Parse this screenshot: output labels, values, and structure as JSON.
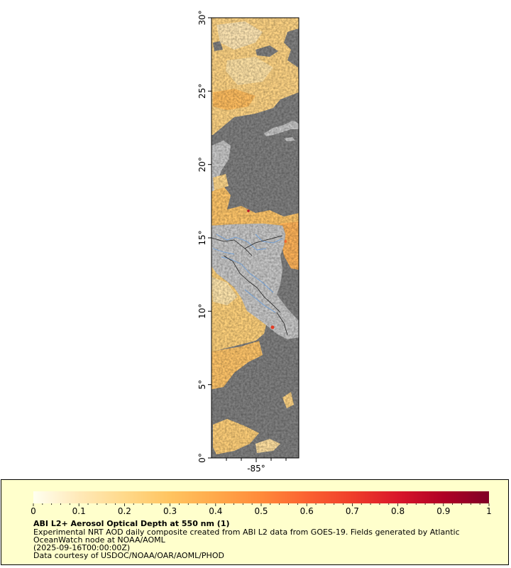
{
  "map": {
    "lat_ticks": [
      "0°",
      "5°",
      "10°",
      "15°",
      "20°",
      "25°",
      "30°"
    ],
    "lon_ticks": [
      "-85°"
    ],
    "colors": {
      "no_data_ocean": "#808080",
      "land": "#c8c8c8",
      "coast": "#a0a0a0",
      "borders": "#222222",
      "rivers": "#6f9fd8"
    }
  },
  "legend": {
    "colorbar_ticks": [
      "0",
      "0.1",
      "0.2",
      "0.3",
      "0.4",
      "0.5",
      "0.6",
      "0.7",
      "0.8",
      "0.9",
      "1"
    ],
    "colorbar_colors": [
      "#fffff0",
      "#ffe9b8",
      "#ffd98a",
      "#ffc460",
      "#ffa94a",
      "#ff8a3a",
      "#fb6231",
      "#ef3e2a",
      "#d9172a",
      "#b00025",
      "#800026"
    ],
    "title": "ABI L2+ Aerosol Optical Depth at 550 nm (1)",
    "line1": "Experimental NRT AOD daily composite created from ABI L2 data from GOES-19. Fields generated by Atlantic",
    "line2": "OceanWatch node at NOAA/AOML",
    "date": "(2025-09-16T00:00:00Z)",
    "credit": "Data courtesy of USDOC/NOAA/OAR/AOML/PHOD",
    "background": "#ffffcc"
  }
}
